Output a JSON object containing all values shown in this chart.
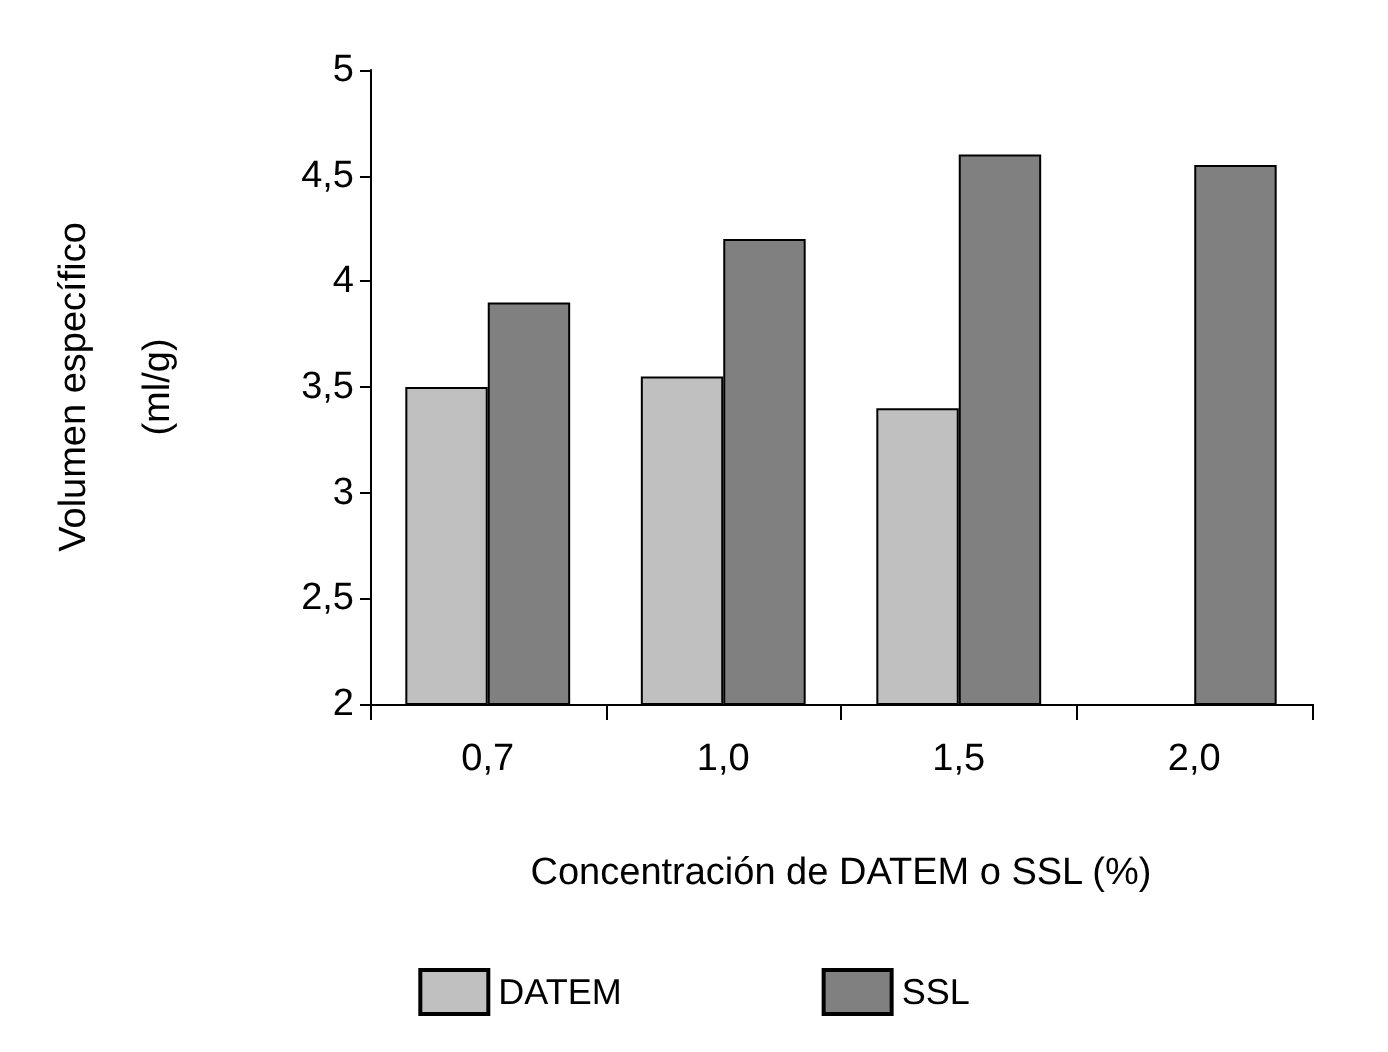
{
  "chart_data": {
    "type": "bar",
    "xlabel": "Concentración de DATEM o SSL (%)",
    "ylabel": "Volumen específico\n(ml/g)",
    "categories": [
      "0,7",
      "1,0",
      "1,5",
      "2,0"
    ],
    "series": [
      {
        "name": "DATEM",
        "color": "#c0c0c0",
        "values": [
          3.5,
          3.55,
          3.4,
          null
        ]
      },
      {
        "name": "SSL",
        "color": "#808080",
        "values": [
          3.9,
          4.2,
          4.6,
          4.55
        ]
      }
    ],
    "ylim": [
      2,
      5
    ],
    "yticks": [
      2,
      {
        "value": 2.5,
        "label": "2,5"
      },
      3,
      {
        "value": 3.5,
        "label": "3,5"
      },
      4,
      {
        "value": 4.5,
        "label": "4,5"
      },
      5
    ],
    "grid": false,
    "legend": "bottom"
  }
}
